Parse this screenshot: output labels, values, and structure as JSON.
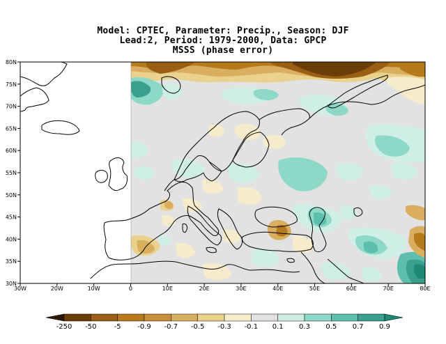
{
  "title": {
    "line1": "Model: CPTEC, Parameter: Precip., Season: DJF",
    "line2": "Lead:2, Period: 1979-2000, Data: GPCP",
    "line3": "MSSS (phase error)"
  },
  "map": {
    "region": "Europe / North Atlantic",
    "lon_range": [
      -30,
      80
    ],
    "lat_range": [
      30,
      80
    ],
    "lon_ticks": [
      "30W",
      "20W",
      "10W",
      "0",
      "10E",
      "20E",
      "30E",
      "40E",
      "50E",
      "60E",
      "70E",
      "80E"
    ],
    "lat_ticks": [
      "80N",
      "75N",
      "70N",
      "65N",
      "60N",
      "55N",
      "50N",
      "45N",
      "40N",
      "35N",
      "30N"
    ],
    "data_missing_west_of": 0
  },
  "colorbar": {
    "labels": [
      "-250",
      "-50",
      "-5",
      "-0.9",
      "-0.7",
      "-0.5",
      "-0.3",
      "-0.1",
      "0.1",
      "0.3",
      "0.5",
      "0.7",
      "0.9"
    ],
    "colors": [
      "#2a1800",
      "#6b3e08",
      "#9a5f12",
      "#b67a1c",
      "#c89038",
      "#d9ae5f",
      "#ead28e",
      "#f6eccc",
      "#e2e2e2",
      "#cfeee6",
      "#8ed8c8",
      "#5cbfae",
      "#3a9f8c",
      "#1f8a74"
    ]
  }
}
